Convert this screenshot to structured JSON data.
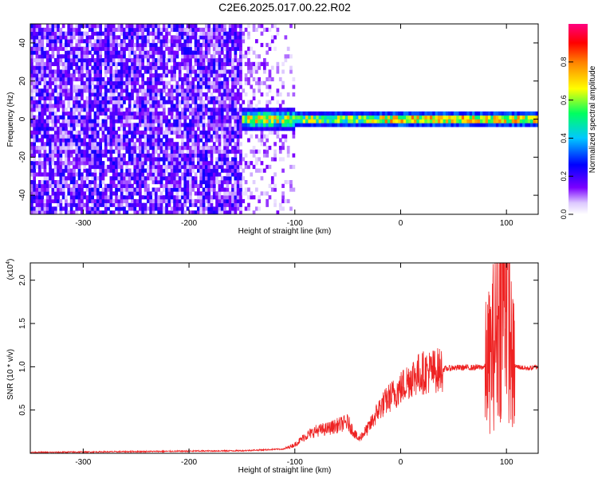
{
  "title": "C2E6.2025.017.00.22.R02",
  "chart_data": [
    {
      "type": "heatmap",
      "xlabel": "Height of straight line (km)",
      "ylabel": "Frequency (Hz)",
      "xlim": [
        -350,
        130
      ],
      "ylim": [
        -50,
        50
      ],
      "xticks": [
        -300,
        -200,
        -100,
        0,
        100
      ],
      "yticks": [
        -40,
        -20,
        0,
        20,
        40
      ],
      "colorbar": {
        "label": "Normalized spectral amplitude",
        "range": [
          0.0,
          1.0
        ],
        "ticks": [
          "0.0",
          "0.2",
          "0.4",
          "0.6",
          "0.8"
        ],
        "colormap": "rainbow",
        "colors": [
          "#ffffff",
          "#7b00ff",
          "#0000ff",
          "#00c0ff",
          "#00ff60",
          "#ffff00",
          "#ff8000",
          "#ff0000",
          "#ff0080"
        ]
      },
      "regions": [
        {
          "x": [
            -350,
            -150
          ],
          "freq": [
            -50,
            50
          ],
          "amplitude": [
            0.0,
            0.25
          ]
        },
        {
          "x": [
            -150,
            -100
          ],
          "freq": [
            -50,
            50
          ],
          "amplitude": [
            0.0,
            0.15
          ]
        },
        {
          "x": [
            -150,
            130
          ],
          "freq": [
            -5,
            5
          ],
          "amplitude": [
            0.2,
            0.95
          ]
        }
      ]
    },
    {
      "type": "line",
      "xlabel": "Height of straight line (km)",
      "ylabel": "SNR (10 * v/v)",
      "multiplier": "(x10",
      "multiplier_exp": "4",
      "multiplier_close": ")",
      "xlim": [
        -350,
        130
      ],
      "ylim": [
        0,
        22000
      ],
      "xticks": [
        -300,
        -200,
        -100,
        0,
        100
      ],
      "yticks": [
        "0.5",
        "1.0",
        "1.5",
        "2.0"
      ],
      "color": "#ee2222",
      "series": [
        {
          "x": [
            -350,
            -300,
            -250,
            -200,
            -150,
            -110,
            -100,
            -90,
            -80,
            -70,
            -60,
            -50,
            -40,
            -30,
            -20,
            -10,
            0,
            10,
            20,
            30,
            40,
            50,
            60,
            70,
            80,
            85,
            90,
            95,
            100,
            105,
            110,
            120,
            130
          ],
          "values": [
            100,
            150,
            200,
            250,
            300,
            500,
            1000,
            2000,
            2600,
            2800,
            3200,
            3600,
            1600,
            3000,
            5200,
            6500,
            7500,
            8800,
            9300,
            9500,
            9700,
            9900,
            9900,
            9900,
            10000,
            11000,
            14000,
            18000,
            22000,
            10200,
            10000,
            9800,
            10000
          ]
        }
      ]
    }
  ]
}
